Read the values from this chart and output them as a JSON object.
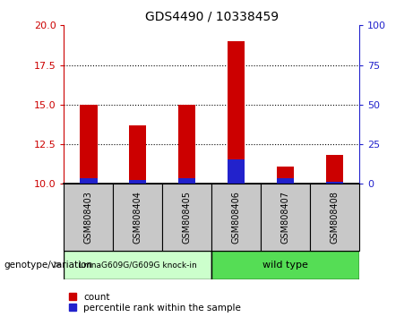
{
  "title": "GDS4490 / 10338459",
  "samples": [
    "GSM808403",
    "GSM808404",
    "GSM808405",
    "GSM808406",
    "GSM808407",
    "GSM808408"
  ],
  "red_values": [
    15.0,
    13.7,
    15.0,
    19.0,
    11.1,
    11.8
  ],
  "blue_values": [
    10.35,
    10.25,
    10.35,
    11.55,
    10.35,
    10.15
  ],
  "ylim_left": [
    10,
    20
  ],
  "ylim_right": [
    0,
    100
  ],
  "yticks_left": [
    10,
    12.5,
    15,
    17.5,
    20
  ],
  "yticks_right": [
    0,
    25,
    50,
    75,
    100
  ],
  "bar_base": 10.0,
  "group1_label": "LmnaG609G/G609G knock-in",
  "group2_label": "wild type",
  "genotype_label": "genotype/variation",
  "legend_count": "count",
  "legend_percentile": "percentile rank within the sample",
  "red_color": "#cc0000",
  "blue_color": "#2222cc",
  "group1_color": "#ccffcc",
  "group2_color": "#55dd55",
  "sample_bg_color": "#c8c8c8",
  "left_tick_color": "#cc0000",
  "right_tick_color": "#2222cc",
  "bar_width": 0.35,
  "n_samples": 6,
  "n_group1": 3
}
